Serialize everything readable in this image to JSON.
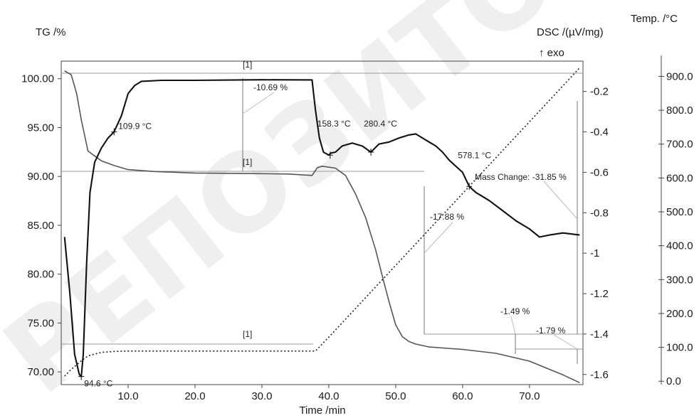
{
  "chart_data": {
    "type": "line",
    "xlabel": "Time /min",
    "x_ticks": [
      "10.0",
      "20.0",
      "30.0",
      "40.0",
      "50.0",
      "60.0",
      "70.0"
    ],
    "xlim": [
      0,
      78
    ],
    "axes": {
      "tg": {
        "label": "TG /%",
        "lim": [
          68.7,
          101.8
        ],
        "ticks": [
          "100.00",
          "95.00",
          "90.00",
          "85.00",
          "80.00",
          "75.00",
          "70.00"
        ]
      },
      "dsc": {
        "label": "DSC /(µV/mg)",
        "exo": "↑ exo",
        "lim": [
          -1.65,
          -0.05
        ],
        "ticks": [
          "-0.2",
          "-0.4",
          "-0.6",
          "-0.8",
          "-1",
          "-1.2",
          "-1.4",
          "-1.6"
        ]
      },
      "temp": {
        "label": "Temp. /°C",
        "lim": [
          -10,
          945
        ],
        "ticks": [
          "900.0",
          "800.0",
          "700.0",
          "600.0",
          "500.0",
          "400.0",
          "300.0",
          "200.0",
          "100.0",
          "0.0"
        ]
      }
    },
    "series": [
      {
        "axis": "tg",
        "color": "#555555",
        "width": 1.6,
        "dash": "",
        "x": [
          0.5,
          1.5,
          2.3,
          3.0,
          4.0,
          6.0,
          8.0,
          10.0,
          14.0,
          20.0,
          28.0,
          34.0,
          37.5,
          38.3,
          39.0,
          41.0,
          42.5,
          44.0,
          45.5,
          47.0,
          48.0,
          49.0,
          50.0,
          51.0,
          52.0,
          53.0,
          54.0,
          55.0,
          60.0,
          65.0,
          70.0,
          75.0,
          77.5
        ],
        "y": [
          100.8,
          100.4,
          98.5,
          95.8,
          92.6,
          91.6,
          91.1,
          90.7,
          90.5,
          90.35,
          90.3,
          90.25,
          90.1,
          90.9,
          91.05,
          90.85,
          90.1,
          88.2,
          85.8,
          82.5,
          79.8,
          77.2,
          74.8,
          73.6,
          73.1,
          72.85,
          72.7,
          72.55,
          72.3,
          71.9,
          71.1,
          69.7,
          68.9
        ]
      },
      {
        "axis": "dsc",
        "color": "#111111",
        "width": 2.1,
        "dash": "",
        "x": [
          0.5,
          1.3,
          2.0,
          2.7,
          3.0,
          3.3,
          3.8,
          4.3,
          5.0,
          6.0,
          7.0,
          7.9,
          9.0,
          10.0,
          11.0,
          12.0,
          15.0,
          20.0,
          30.0,
          37.5,
          38.0,
          38.6,
          39.2,
          40.0,
          40.3,
          41.0,
          42.0,
          43.5,
          45.0,
          46.3,
          47.5,
          49.0,
          50.5,
          52.0,
          53.0,
          54.0,
          55.0,
          56.0,
          57.0,
          58.0,
          59.0,
          60.0,
          61.0,
          62.0,
          64.0,
          66.0,
          68.0,
          70.0,
          71.5,
          73.0,
          75.0,
          77.5
        ],
        "y": [
          -0.92,
          -1.2,
          -1.5,
          -1.6,
          -1.61,
          -1.5,
          -1.05,
          -0.7,
          -0.55,
          -0.48,
          -0.43,
          -0.4,
          -0.32,
          -0.21,
          -0.17,
          -0.15,
          -0.145,
          -0.145,
          -0.142,
          -0.143,
          -0.29,
          -0.43,
          -0.5,
          -0.515,
          -0.505,
          -0.5,
          -0.47,
          -0.455,
          -0.47,
          -0.5,
          -0.46,
          -0.45,
          -0.43,
          -0.415,
          -0.41,
          -0.43,
          -0.45,
          -0.47,
          -0.5,
          -0.54,
          -0.57,
          -0.6,
          -0.67,
          -0.7,
          -0.74,
          -0.79,
          -0.84,
          -0.88,
          -0.92,
          -0.91,
          -0.9,
          -0.91
        ]
      },
      {
        "axis": "temp",
        "color": "#222222",
        "width": 1.6,
        "dash": "2,3",
        "x": [
          0.5,
          1.5,
          3.0,
          4.0,
          6.0,
          8.0,
          10.0,
          15.0,
          20.0,
          25.0,
          30.0,
          35.0,
          38.0,
          40.0,
          50.0,
          60.0,
          70.0,
          77.5
        ],
        "y": [
          15,
          35,
          60,
          75,
          85,
          88,
          89,
          89,
          89,
          89,
          89,
          89,
          89,
          130,
          342,
          554,
          766,
          925
        ]
      }
    ],
    "peaks": [
      {
        "label": "94.6 °C",
        "x": 3.0,
        "axis": "dsc",
        "y": -1.61
      },
      {
        "label": "109.9 °C",
        "x": 7.9,
        "axis": "dsc",
        "y": -0.4
      },
      {
        "label": "158.3 °C",
        "x": 40.2,
        "axis": "dsc",
        "y": -0.515
      },
      {
        "label": "280.4 °C",
        "x": 46.3,
        "axis": "dsc",
        "y": -0.5
      },
      {
        "label": "578.1 °C",
        "x": 61.0,
        "axis": "dsc",
        "y": -0.67
      }
    ],
    "mass_changes": [
      "-10.69 %",
      "-17.88 %",
      "-1.49 %",
      "-1.79 %",
      "Mass Change: -31.85 %"
    ],
    "segment_labels": [
      "[1]",
      "[1]",
      "[1]"
    ]
  },
  "watermark": "РЕПОЗИТОРИЙ"
}
